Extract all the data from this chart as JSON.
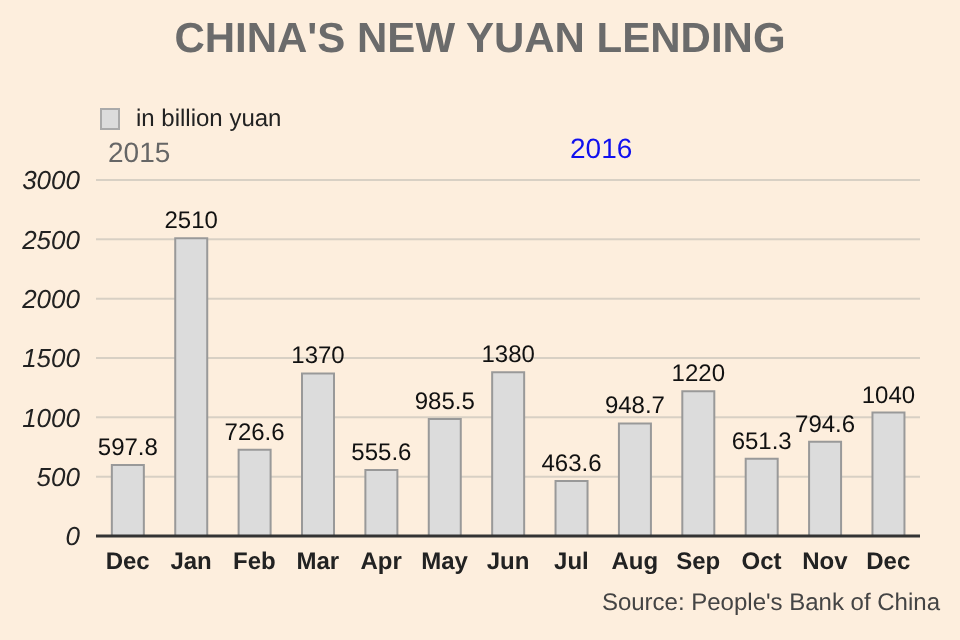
{
  "chart_data": {
    "type": "bar",
    "title": "CHINA'S NEW YUAN LENDING",
    "categories": [
      "Dec",
      "Jan",
      "Feb",
      "Mar",
      "Apr",
      "May",
      "Jun",
      "Jul",
      "Aug",
      "Sep",
      "Oct",
      "Nov",
      "Dec"
    ],
    "series": [
      {
        "name": "in billion yuan",
        "color": "#dcdcdc",
        "values": [
          597.8,
          2510,
          726.6,
          1370,
          555.6,
          985.5,
          1380,
          463.6,
          948.7,
          1220,
          651.3,
          794.6,
          1040
        ]
      }
    ],
    "ylim": [
      0,
      3000
    ],
    "yticks": [
      0,
      500,
      1000,
      1500,
      2000,
      2500,
      3000
    ],
    "grid": "y",
    "legend": "top left",
    "data_labels": true,
    "annotations": [
      "2015",
      "2016",
      "Source: People's Bank of China"
    ]
  }
}
